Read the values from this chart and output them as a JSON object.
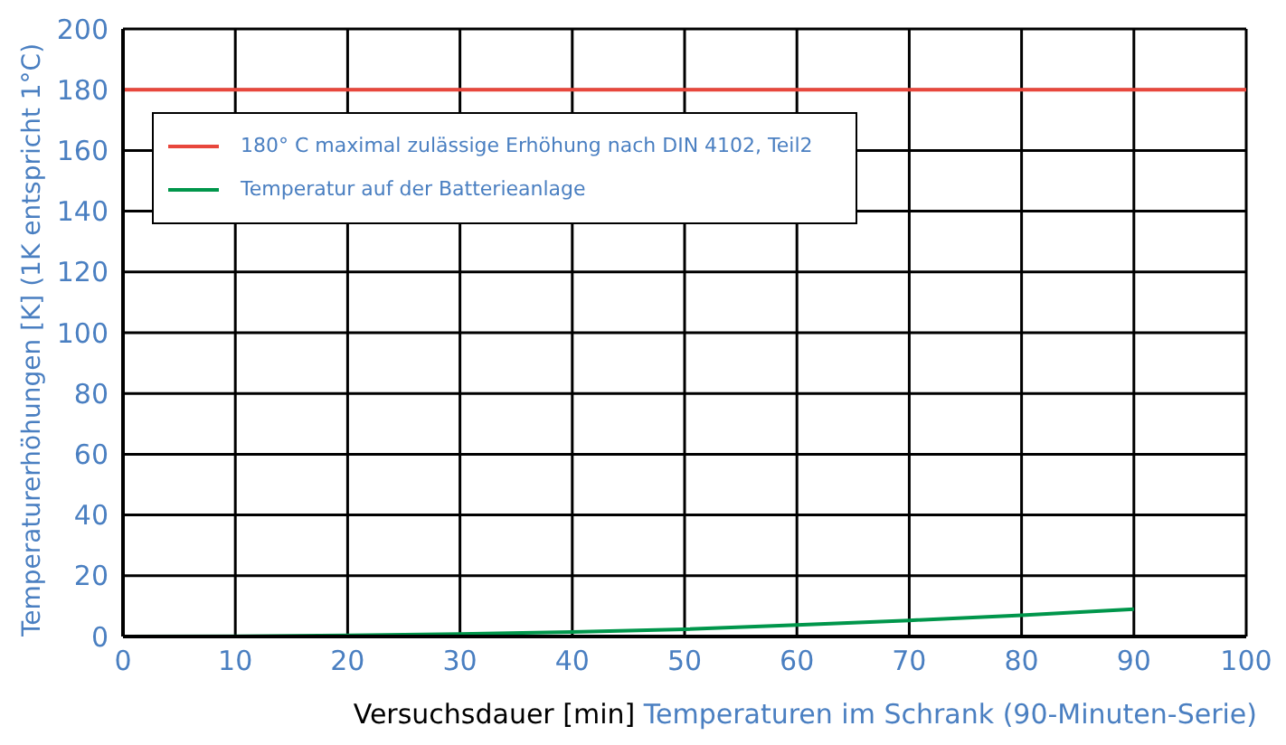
{
  "chart_data": {
    "type": "line",
    "xlabel": "Versuchsdauer [min]",
    "ylabel": "Temperaturerhöhungen [K] (1K entspricht 1°C)",
    "annotations": [
      "Temperaturen im Schrank (90-Minuten-Serie)"
    ],
    "series": [
      {
        "name": "180° C maximal zulässige Erhöhung nach DIN 4102, Teil2",
        "color": "#e8473c",
        "x": [
          0,
          100
        ],
        "values": [
          180,
          180
        ]
      },
      {
        "name": "Temperatur auf der Batterieanlage",
        "color": "#00964b",
        "x": [
          0,
          10,
          20,
          30,
          40,
          50,
          60,
          70,
          80,
          90
        ],
        "values": [
          0,
          0.1,
          0.4,
          0.8,
          1.5,
          2.4,
          3.8,
          5.3,
          7,
          9
        ]
      }
    ],
    "xlim": [
      0,
      100
    ],
    "xticks": [
      0,
      10,
      20,
      30,
      40,
      50,
      60,
      70,
      80,
      90,
      100
    ],
    "ylim": [
      0,
      200
    ],
    "yticks": [
      0,
      20,
      40,
      60,
      80,
      100,
      120,
      140,
      160,
      180,
      200
    ],
    "grid": true,
    "legend": "top left",
    "marker": "none",
    "line_style": "solid"
  }
}
